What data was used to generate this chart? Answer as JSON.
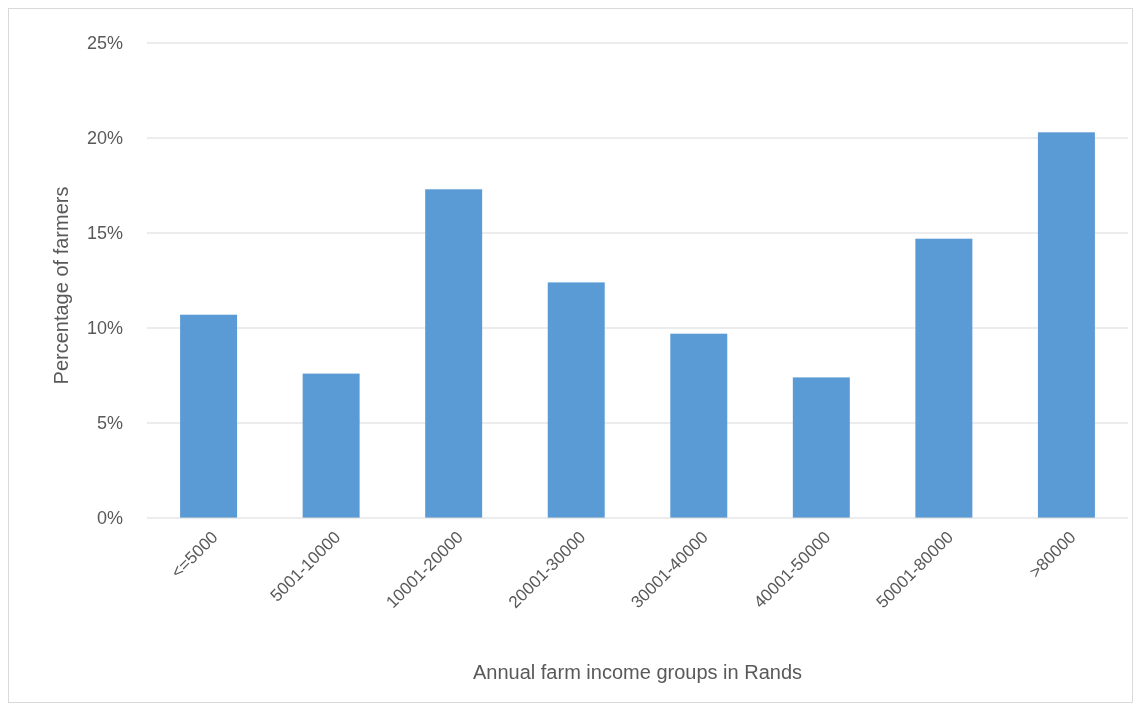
{
  "chart_data": {
    "type": "bar",
    "xlabel": "Annual farm income groups in Rands",
    "ylabel": "Percentage of farmers",
    "categories": [
      "<=5000",
      "5001-10000",
      "10001-20000",
      "20001-30000",
      "30001-40000",
      "40001-50000",
      "50001-80000",
      ">80000"
    ],
    "values": [
      10.7,
      7.6,
      17.3,
      12.4,
      9.7,
      7.4,
      14.7,
      20.3
    ],
    "color": "#5b9bd5",
    "ylim": [
      0,
      25
    ],
    "yticks": [
      {
        "value": 0,
        "label": "0%"
      },
      {
        "value": 5,
        "label": "5%"
      },
      {
        "value": 10,
        "label": "10%"
      },
      {
        "value": 15,
        "label": "15%"
      },
      {
        "value": 20,
        "label": "20%"
      },
      {
        "value": 25,
        "label": "25%"
      }
    ],
    "grid": "y"
  }
}
